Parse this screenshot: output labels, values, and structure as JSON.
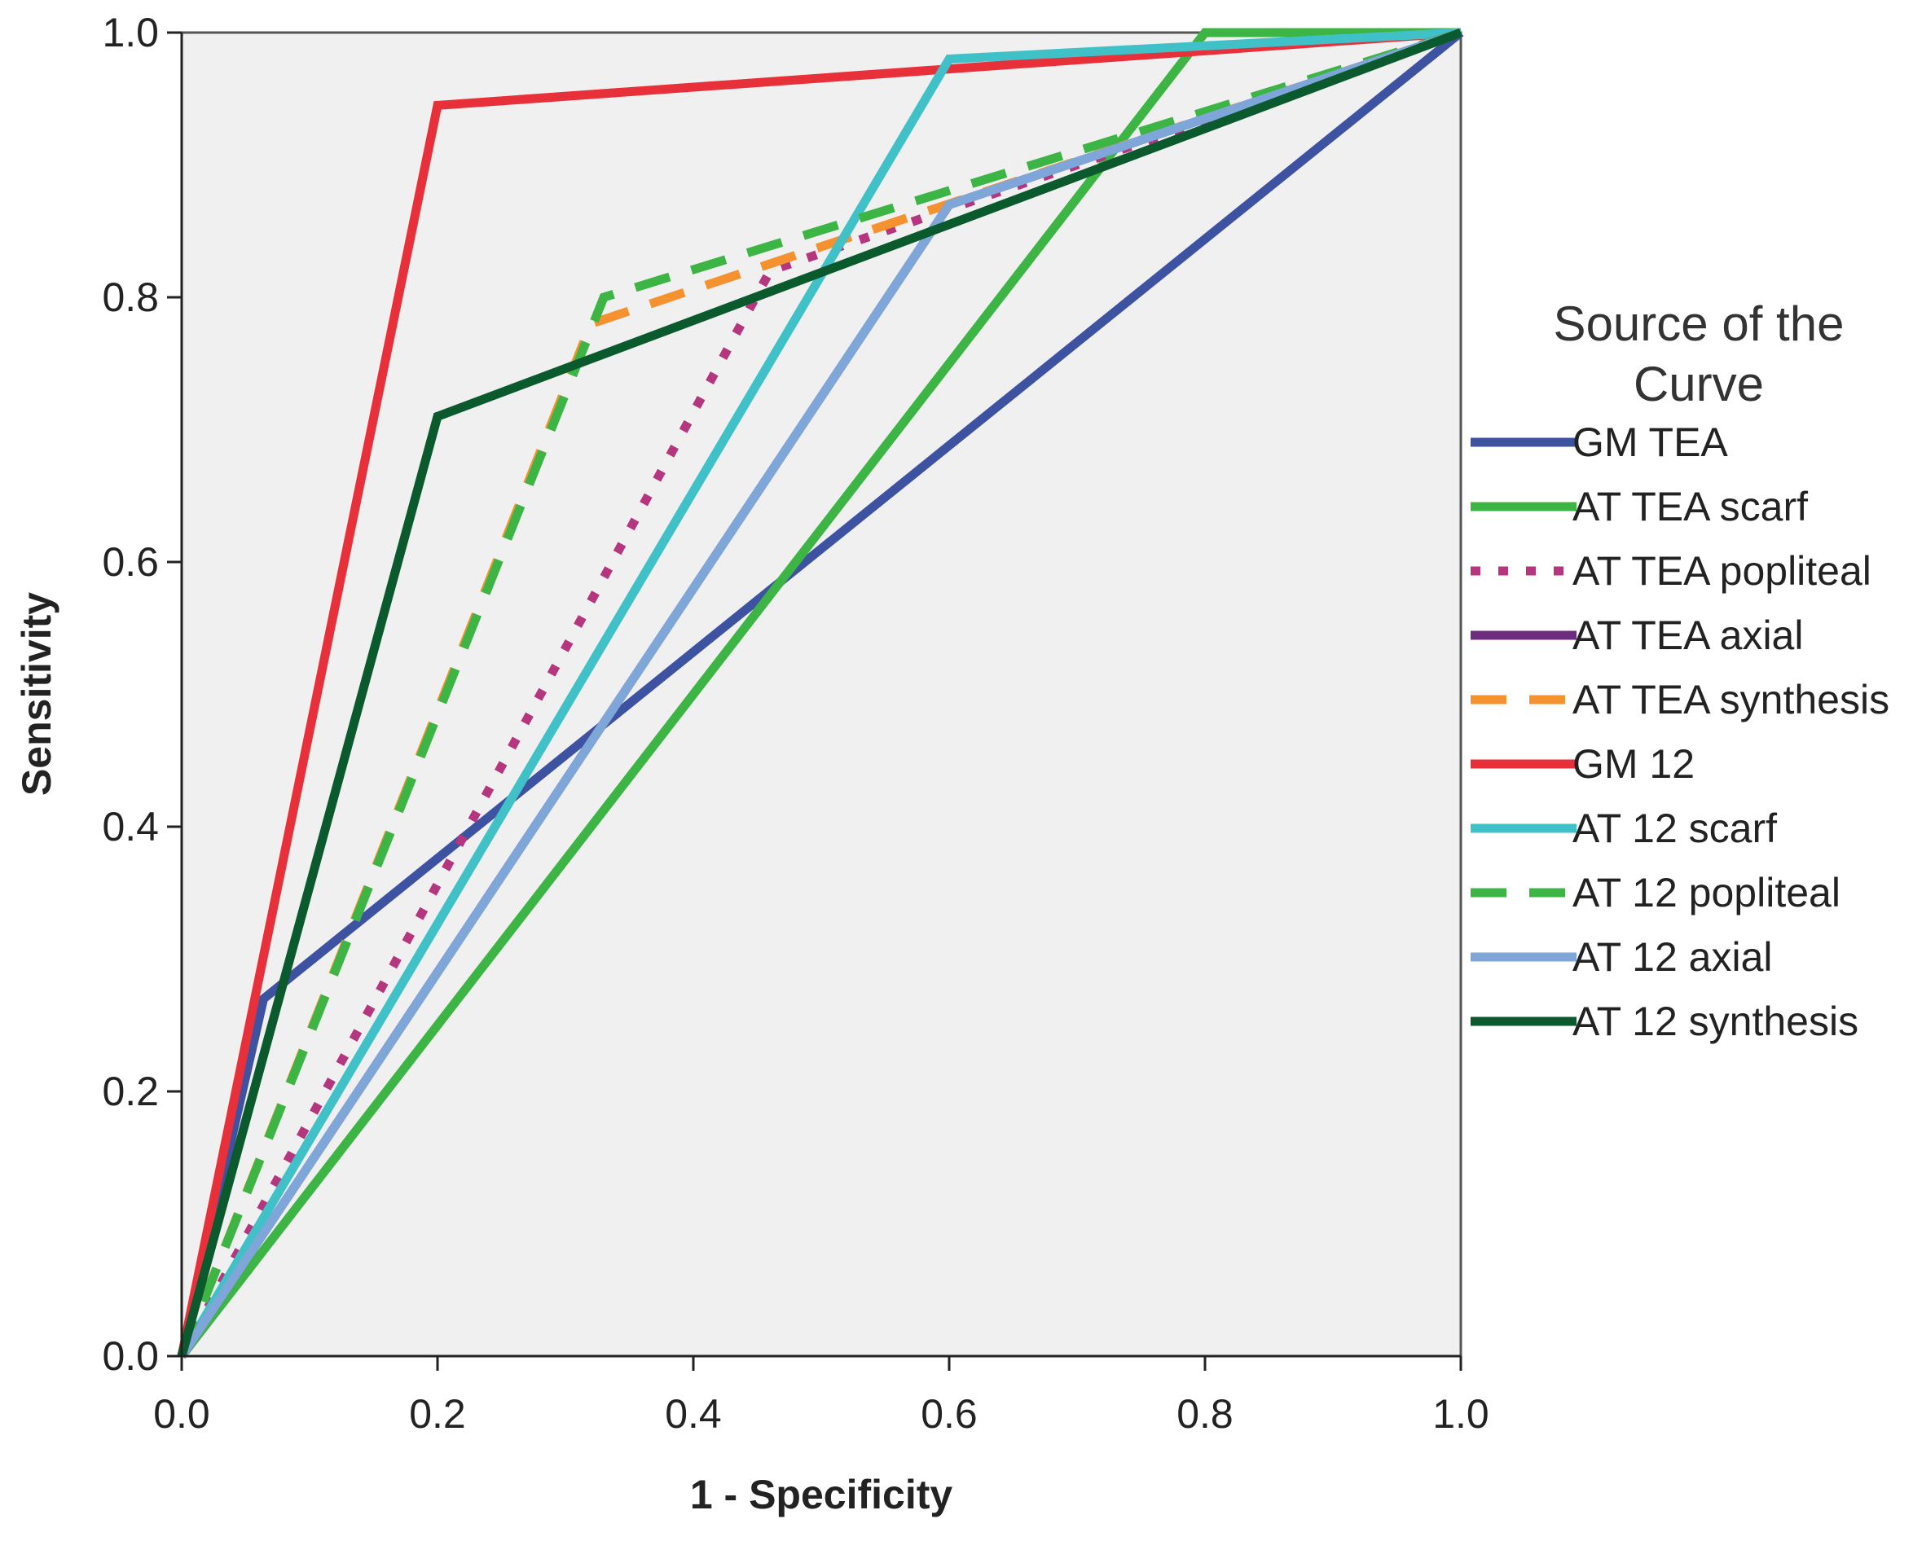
{
  "chart_data": {
    "type": "line",
    "title": "",
    "xlabel": "1 - Specificity",
    "ylabel": "Sensitivity",
    "xlim": [
      0,
      1
    ],
    "ylim": [
      0,
      1
    ],
    "xticks": [
      "0.0",
      "0.2",
      "0.4",
      "0.6",
      "0.8",
      "1.0"
    ],
    "yticks": [
      "0.0",
      "0.2",
      "0.4",
      "0.6",
      "0.8",
      "1.0"
    ],
    "grid": false,
    "background": "#f0f0f0",
    "legend": {
      "title_line1": "Source of the",
      "title_line2": "Curve",
      "placement": "right"
    },
    "series": [
      {
        "name": "GM TEA",
        "color": "#3d52a1",
        "dash": "solid",
        "points": [
          [
            0,
            0
          ],
          [
            0.064,
            0.27
          ],
          [
            1,
            1
          ]
        ]
      },
      {
        "name": "AT TEA scarf",
        "color": "#3cb545",
        "dash": "solid",
        "points": [
          [
            0,
            0
          ],
          [
            0.8,
            1
          ],
          [
            1,
            1
          ]
        ]
      },
      {
        "name": "AT TEA popliteal",
        "color": "#b5357f",
        "dash": "dotted",
        "points": [
          [
            0,
            0
          ],
          [
            0.46,
            0.82
          ],
          [
            1,
            1
          ]
        ]
      },
      {
        "name": "AT TEA axial",
        "color": "#6e2c7d",
        "dash": "solid",
        "points": [
          [
            0,
            0
          ],
          [
            0.6,
            0.87
          ],
          [
            1,
            1
          ]
        ]
      },
      {
        "name": "AT TEA synthesis",
        "color": "#f5922f",
        "dash": "dashed",
        "points": [
          [
            0,
            0
          ],
          [
            0.32,
            0.78
          ],
          [
            1,
            1
          ]
        ]
      },
      {
        "name": "GM 12",
        "color": "#e8303a",
        "dash": "solid",
        "points": [
          [
            0,
            0
          ],
          [
            0.2,
            0.945
          ],
          [
            1,
            1
          ]
        ]
      },
      {
        "name": "AT 12 scarf",
        "color": "#40c1c8",
        "dash": "solid",
        "points": [
          [
            0,
            0
          ],
          [
            0.6,
            0.98
          ],
          [
            1,
            1
          ]
        ]
      },
      {
        "name": "AT 12 popliteal",
        "color": "#3cb545",
        "dash": "dashed",
        "points": [
          [
            0,
            0
          ],
          [
            0.33,
            0.8
          ],
          [
            1,
            1
          ]
        ]
      },
      {
        "name": "AT 12 axial",
        "color": "#7fa6d9",
        "dash": "solid",
        "points": [
          [
            0,
            0
          ],
          [
            0.6,
            0.87
          ],
          [
            1,
            1
          ]
        ]
      },
      {
        "name": "AT 12 synthesis",
        "color": "#0b5a2e",
        "dash": "solid",
        "points": [
          [
            0,
            0
          ],
          [
            0.2,
            0.71
          ],
          [
            1,
            1
          ]
        ]
      }
    ]
  }
}
